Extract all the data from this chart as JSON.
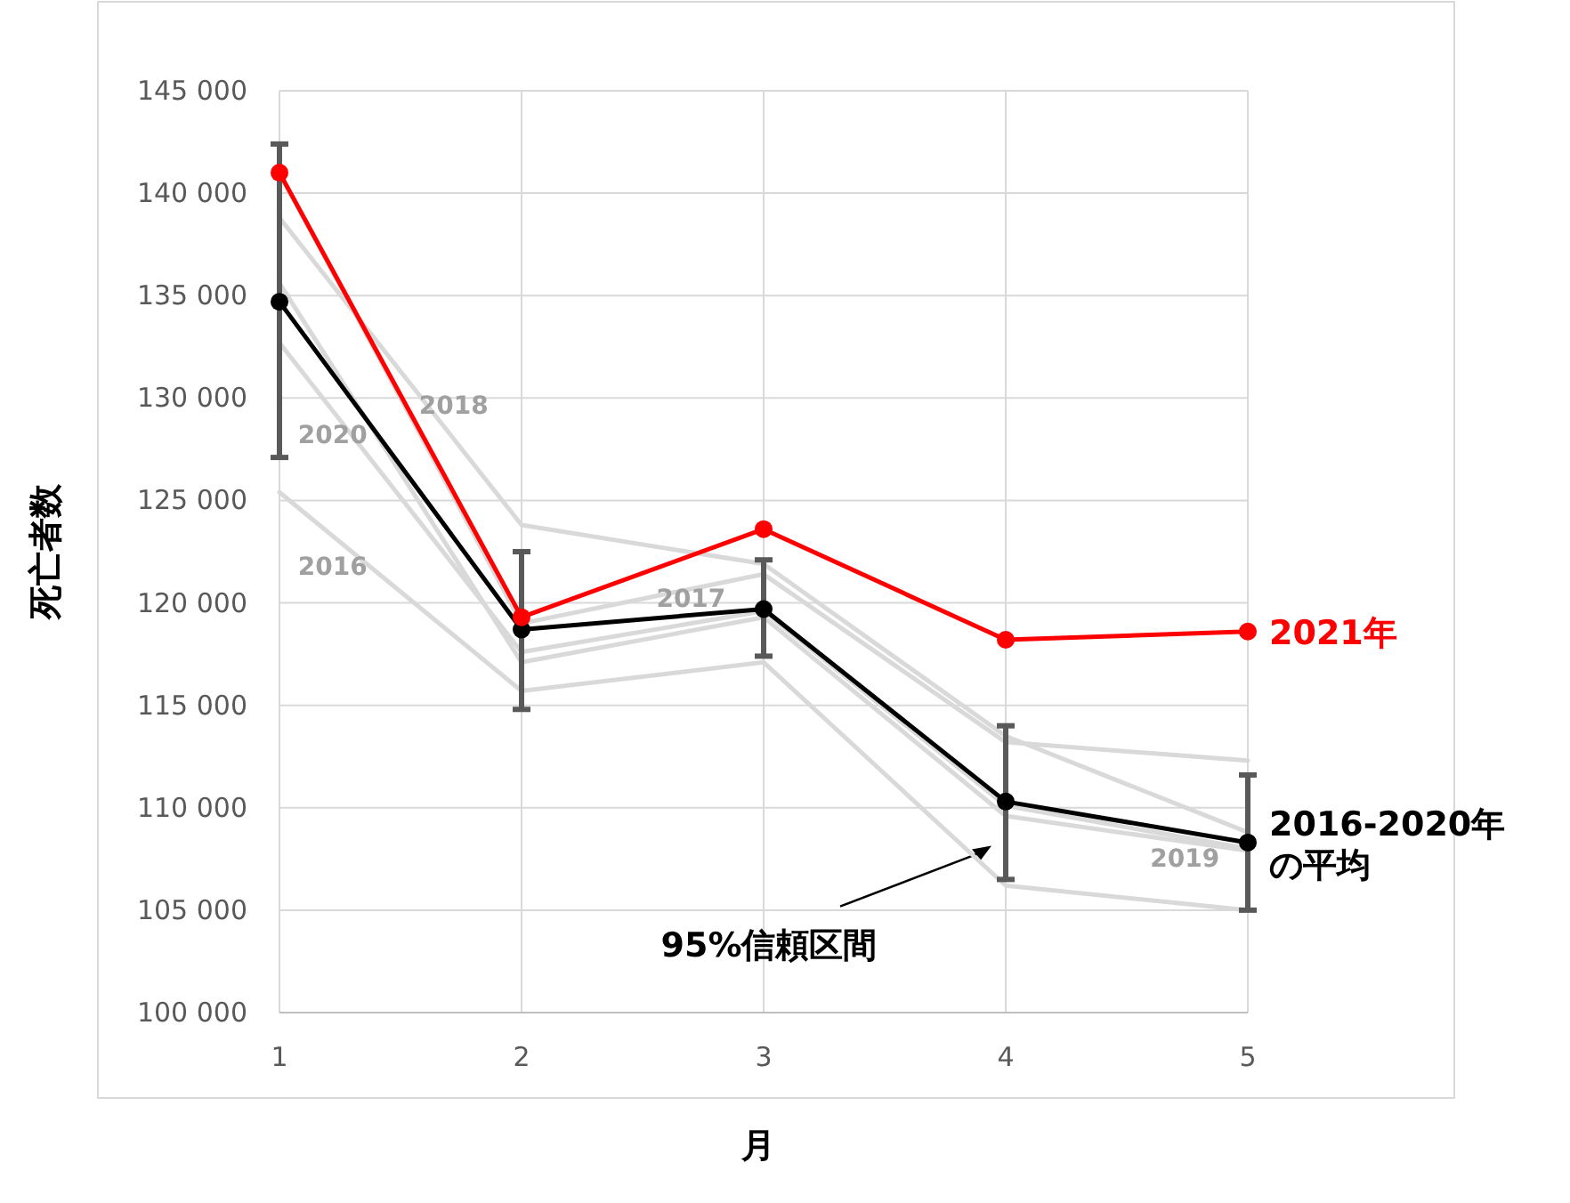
{
  "chart_data": {
    "type": "line",
    "xlabel": "月",
    "ylabel": "死亡者数",
    "x": [
      1,
      2,
      3,
      4,
      5
    ],
    "xlim": [
      1,
      5
    ],
    "xticks": [
      1,
      2,
      3,
      4,
      5
    ],
    "ylim": [
      100000,
      145000
    ],
    "yticks": [
      {
        "value": 100000,
        "label": "100 000"
      },
      {
        "value": 105000,
        "label": "105 000"
      },
      {
        "value": 110000,
        "label": "110 000"
      },
      {
        "value": 115000,
        "label": "115 000"
      },
      {
        "value": 120000,
        "label": "120 000"
      },
      {
        "value": 125000,
        "label": "125 000"
      },
      {
        "value": 130000,
        "label": "130 000"
      },
      {
        "value": 135000,
        "label": "135 000"
      },
      {
        "value": 140000,
        "label": "140 000"
      },
      {
        "value": 145000,
        "label": "145 000"
      }
    ],
    "grid": true,
    "series": [
      {
        "name": "2018",
        "color": "#d9d9d9",
        "marker": "none",
        "values": [
          138800,
          123800,
          121900,
          113500,
          108800
        ]
      },
      {
        "name": "2017",
        "color": "#d9d9d9",
        "marker": "none",
        "values": [
          141000,
          119000,
          121400,
          113200,
          112300
        ]
      },
      {
        "name": "2020",
        "color": "#d9d9d9",
        "marker": "none",
        "values": [
          132700,
          117600,
          119600,
          110100,
          108000
        ]
      },
      {
        "name": "2019",
        "color": "#d9d9d9",
        "marker": "none",
        "values": [
          135600,
          117100,
          119300,
          109600,
          107900
        ]
      },
      {
        "name": "2016",
        "color": "#d9d9d9",
        "marker": "none",
        "values": [
          125400,
          115700,
          117100,
          106200,
          105000
        ]
      },
      {
        "name": "2021年",
        "color": "#ff0000",
        "marker": "circle",
        "values": [
          141000,
          119300,
          123600,
          118200,
          118600
        ]
      },
      {
        "name": "2016-2020年の平均",
        "color": "#000000",
        "marker": "circle",
        "values": [
          134700,
          118700,
          119700,
          110300,
          108300
        ],
        "errors": [
          [
            127100,
            142400
          ],
          [
            114800,
            122500
          ],
          [
            117400,
            122100
          ],
          [
            106500,
            114000
          ],
          [
            105000,
            111600
          ]
        ]
      }
    ],
    "annotations": [
      "95%信頼区間"
    ]
  }
}
